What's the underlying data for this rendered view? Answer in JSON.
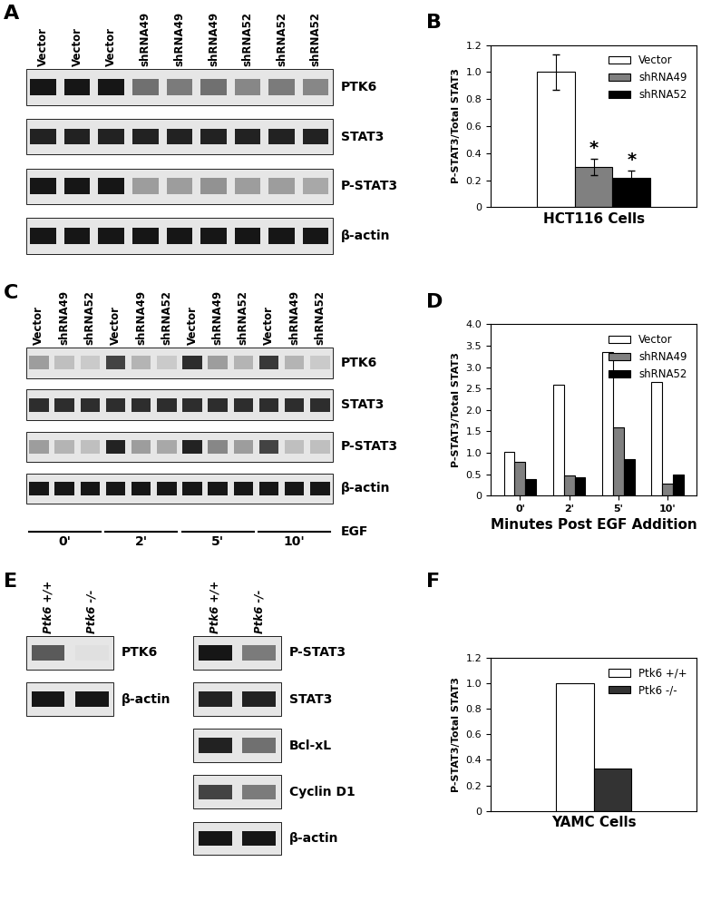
{
  "blots": [
    {
      "panel": "A",
      "lanes": [
        "Vector",
        "Vector",
        "Vector",
        "shRNA49",
        "shRNA49",
        "shRNA49",
        "shRNA52",
        "shRNA52",
        "shRNA52"
      ],
      "rows": [
        {
          "label": "PTK6",
          "intensities": [
            0.9,
            0.9,
            0.9,
            0.5,
            0.45,
            0.5,
            0.4,
            0.45,
            0.4
          ]
        },
        {
          "label": "STAT3",
          "intensities": [
            0.85,
            0.85,
            0.85,
            0.85,
            0.85,
            0.85,
            0.85,
            0.85,
            0.85
          ]
        },
        {
          "label": "P-STAT3",
          "intensities": [
            0.9,
            0.9,
            0.9,
            0.3,
            0.3,
            0.35,
            0.3,
            0.3,
            0.25
          ]
        },
        {
          "label": "β-actin",
          "intensities": [
            0.9,
            0.9,
            0.9,
            0.9,
            0.9,
            0.9,
            0.9,
            0.9,
            0.9
          ]
        }
      ]
    },
    {
      "panel": "C",
      "lanes": [
        "Vector",
        "shRNA49",
        "shRNA52",
        "Vector",
        "shRNA49",
        "shRNA52",
        "Vector",
        "shRNA49",
        "shRNA52",
        "Vector",
        "shRNA49",
        "shRNA52"
      ],
      "rows": [
        {
          "label": "PTK6",
          "intensities": [
            0.3,
            0.15,
            0.1,
            0.7,
            0.2,
            0.1,
            0.8,
            0.3,
            0.2,
            0.75,
            0.2,
            0.1
          ]
        },
        {
          "label": "STAT3",
          "intensities": [
            0.8,
            0.8,
            0.8,
            0.8,
            0.8,
            0.8,
            0.8,
            0.8,
            0.8,
            0.8,
            0.8,
            0.8
          ]
        },
        {
          "label": "P-STAT3",
          "intensities": [
            0.3,
            0.2,
            0.15,
            0.85,
            0.3,
            0.25,
            0.85,
            0.4,
            0.3,
            0.7,
            0.15,
            0.15
          ]
        },
        {
          "label": "β-actin",
          "intensities": [
            0.9,
            0.9,
            0.9,
            0.9,
            0.9,
            0.9,
            0.9,
            0.9,
            0.9,
            0.9,
            0.9,
            0.9
          ]
        }
      ],
      "groups": [
        "0'",
        "2'",
        "5'",
        "10'"
      ],
      "group_label": "EGF"
    },
    {
      "panel": "E",
      "sections": [
        {
          "lanes": [
            "Ptk6 +/+",
            "Ptk6 -/-"
          ],
          "rows": [
            {
              "label": "PTK6",
              "intensities": [
                0.6,
                0.0
              ]
            },
            {
              "label": "β-actin",
              "intensities": [
                0.9,
                0.9
              ]
            }
          ]
        },
        {
          "lanes": [
            "Ptk6 +/+",
            "Ptk6 -/-"
          ],
          "rows": [
            {
              "label": "P-STAT3",
              "intensities": [
                0.9,
                0.45
              ]
            },
            {
              "label": "STAT3",
              "intensities": [
                0.85,
                0.85
              ]
            },
            {
              "label": "Bcl-xL",
              "intensities": [
                0.85,
                0.5
              ]
            },
            {
              "label": "Cyclin D1",
              "intensities": [
                0.7,
                0.45
              ]
            },
            {
              "label": "β-actin",
              "intensities": [
                0.9,
                0.9
              ]
            }
          ]
        }
      ]
    }
  ],
  "chart_data": [
    {
      "panel": "B",
      "type": "bar",
      "categories": [
        null
      ],
      "series": [
        {
          "name": "Vector",
          "color": "#ffffff",
          "values": [
            1.0
          ],
          "errors": [
            0.13
          ]
        },
        {
          "name": "shRNA49",
          "color": "#808080",
          "values": [
            0.3
          ],
          "errors": [
            0.06
          ]
        },
        {
          "name": "shRNA52",
          "color": "#000000",
          "values": [
            0.22
          ],
          "errors": [
            0.05
          ]
        }
      ],
      "annotations": [
        {
          "series": "shRNA49",
          "text": "*"
        },
        {
          "series": "shRNA52",
          "text": "*"
        }
      ],
      "y_label": "P-STAT3/Total STAT3",
      "x_label": "HCT116 Cells",
      "ylim": [
        0,
        1.2
      ],
      "yticks": [
        0,
        0.2,
        0.4,
        0.6,
        0.8,
        {
          "value": 1,
          "label": "1.0"
        },
        1.2
      ],
      "legend": "upper right",
      "tick_labels": "y"
    },
    {
      "panel": "D",
      "type": "bar",
      "categories": [
        "0'",
        "2'",
        "5'",
        "10'"
      ],
      "series": [
        {
          "name": "Vector",
          "color": "#ffffff",
          "values": [
            1.02,
            2.6,
            3.35,
            2.65
          ]
        },
        {
          "name": "shRNA49",
          "color": "#808080",
          "values": [
            0.78,
            0.48,
            1.6,
            0.28
          ]
        },
        {
          "name": "shRNA52",
          "color": "#000000",
          "values": [
            0.38,
            0.42,
            0.85,
            0.5
          ]
        }
      ],
      "y_label": "P-STAT3/Total STAT3",
      "x_label": "Minutes Post EGF Addition",
      "ylim": [
        0,
        4
      ],
      "yticks": [
        0,
        0.5,
        {
          "value": 1,
          "label": "1.0"
        },
        1.5,
        {
          "value": 2,
          "label": "2.0"
        },
        2.5,
        {
          "value": 3,
          "label": "3.0"
        },
        3.5,
        {
          "value": 4,
          "label": "4.0"
        }
      ],
      "legend": "upper right"
    },
    {
      "panel": "F",
      "type": "bar",
      "categories": [
        null
      ],
      "series": [
        {
          "name": "Ptk6 +/+",
          "color": "#ffffff",
          "values": [
            1.0
          ]
        },
        {
          "name": "Ptk6 -/-",
          "color": "#333333",
          "values": [
            0.33
          ]
        }
      ],
      "y_label": "P-STAT3/Total STAT3",
      "x_label": "YAMC Cells",
      "ylim": [
        0,
        1.2
      ],
      "yticks": [
        0,
        0.2,
        0.4,
        0.6,
        0.8,
        {
          "value": 1,
          "label": "1.0"
        },
        1.2
      ],
      "legend": "upper right",
      "tick_labels": "y"
    }
  ]
}
